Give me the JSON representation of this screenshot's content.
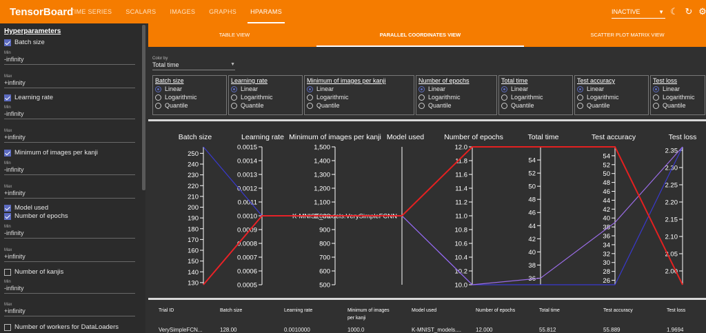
{
  "app": {
    "title": "TensorBoard",
    "nav": [
      "TIME SERIES",
      "SCALARS",
      "IMAGES",
      "GRAPHS",
      "HPARAMS"
    ],
    "run_state": "INACTIVE"
  },
  "sidebar": {
    "title": "Hyperparameters",
    "items": [
      {
        "label": "Batch size",
        "checked": true,
        "min": "-infinity",
        "max": "+infinity"
      },
      {
        "label": "Learning rate",
        "checked": true,
        "min": "-infinity",
        "max": "+infinity"
      },
      {
        "label": "Minimum of images per kanji",
        "checked": true,
        "min": "-infinity",
        "max": "+infinity"
      },
      {
        "label": "Model used",
        "checked": true
      },
      {
        "label": "Number of epochs",
        "checked": true,
        "min": "-infinity",
        "max": "+infinity"
      },
      {
        "label": "Number of kanjis",
        "checked": false,
        "min": "-infinity",
        "max": "+infinity"
      },
      {
        "label": "Number of workers for DataLoaders",
        "checked": false
      }
    ],
    "min_label": "Min",
    "max_label": "Max"
  },
  "tabs": [
    "TABLE VIEW",
    "PARALLEL COORDINATES VIEW",
    "SCATTER PLOT MATRIX VIEW"
  ],
  "color_by": {
    "label": "Color by",
    "value": "Total time"
  },
  "scale_options": [
    "Linear",
    "Logarithmic",
    "Quantile"
  ],
  "scale_boxes": [
    "Batch size",
    "Learning rate",
    "Minimum of images per kanji",
    "Number of epochs",
    "Total time",
    "Test accuracy",
    "Test loss"
  ],
  "chart_data": {
    "type": "parallel-coordinates",
    "axes": [
      {
        "name": "Batch size",
        "ticks": [
          "250",
          "240",
          "230",
          "220",
          "210",
          "200",
          "190",
          "180",
          "170",
          "160",
          "150",
          "140",
          "130"
        ],
        "range": [
          128,
          256
        ]
      },
      {
        "name": "Learning rate",
        "ticks": [
          "0.0015",
          "0.0014",
          "0.0013",
          "0.0012",
          "0.0011",
          "0.0010",
          "0.0009",
          "0.0008",
          "0.0007",
          "0.0006",
          "0.0005"
        ],
        "range": [
          0.0005,
          0.0015
        ]
      },
      {
        "name": "Minimum of images per kanji",
        "ticks": [
          "1,500",
          "1,400",
          "1,300",
          "1,200",
          "1,100",
          "1,000",
          "900",
          "800",
          "700",
          "600",
          "500"
        ],
        "range": [
          500,
          1500
        ]
      },
      {
        "name": "Model used",
        "ticks": [
          "K-MNIST_models.VerySimpleFCNN"
        ],
        "categorical": true
      },
      {
        "name": "Number of epochs",
        "ticks": [
          "12.0",
          "11.8",
          "11.6",
          "11.4",
          "11.2",
          "11.0",
          "10.8",
          "10.6",
          "10.4",
          "10.2",
          "10.0"
        ],
        "range": [
          10,
          12
        ]
      },
      {
        "name": "Total time",
        "ticks": [
          "54",
          "52",
          "50",
          "48",
          "46",
          "44",
          "42",
          "40",
          "38",
          "36"
        ],
        "range": [
          35,
          56
        ]
      },
      {
        "name": "Test accuracy",
        "ticks": [
          "54",
          "52",
          "50",
          "48",
          "46",
          "44",
          "42",
          "40",
          "38",
          "36",
          "34",
          "32",
          "30",
          "28",
          "26"
        ],
        "range": [
          25,
          56
        ]
      },
      {
        "name": "Test loss",
        "ticks": [
          "2.35",
          "2.30",
          "2.25",
          "2.20",
          "2.15",
          "2.10",
          "2.05",
          "2.00"
        ],
        "range": [
          1.96,
          2.36
        ]
      }
    ],
    "series": [
      {
        "values": [
          256,
          0.001,
          1000,
          "K-MNIST_models.VerySimpleFCNN",
          10,
          35,
          25,
          2.36
        ],
        "color": "#3a3ad8"
      },
      {
        "values": [
          128,
          0.001,
          1000,
          "K-MNIST_models.VerySimpleFCNN",
          10,
          36,
          39,
          2.36
        ],
        "color": "#a070f0"
      },
      {
        "values": [
          128,
          0.001,
          1000,
          "K-MNIST_models.VerySimpleFCNN",
          12,
          56,
          56,
          1.96
        ],
        "color": "#ee2020"
      }
    ]
  },
  "table": {
    "headers": [
      "Trial ID",
      "Batch size",
      "Learning rate",
      "Minimum of images per kanji",
      "Model used",
      "Number of epochs",
      "Total time",
      "Test accuracy",
      "Test loss"
    ],
    "row": [
      "VerySimpleFCN...",
      "128.00",
      "0.0010000",
      "1000.0",
      "K-MNIST_models....",
      "12.000",
      "55.812",
      "55.889",
      "1.9694"
    ]
  },
  "colors": {
    "accent": "#f57c00",
    "selected": "#5c6bc0"
  }
}
